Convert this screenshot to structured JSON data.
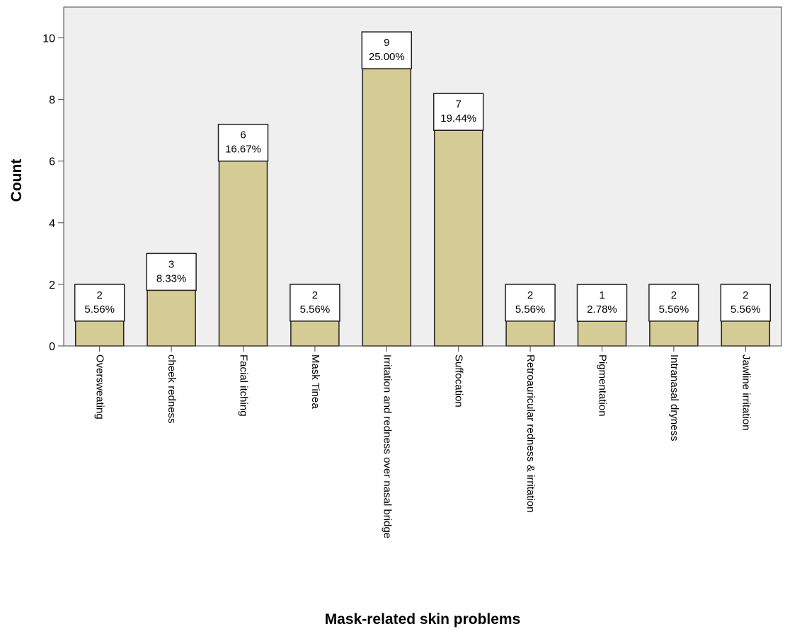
{
  "chart_data": {
    "type": "bar",
    "title": "",
    "xlabel": "Mask-related skin problems",
    "ylabel": "Count",
    "ylim": [
      0,
      11
    ],
    "yticks": [
      0,
      2,
      4,
      6,
      8,
      10
    ],
    "categories": [
      "Oversweating",
      "cheek redness",
      "Facial itching",
      "Mask Tinea",
      "Irritation and redness over nasal bridge",
      "Suffocation",
      "Retroauricular redness & irritation",
      "Pigmentation",
      "Intranasal dryness",
      "Jawline irritation"
    ],
    "values": [
      2,
      3,
      6,
      2,
      9,
      7,
      2,
      1,
      2,
      2
    ],
    "count_labels": [
      "2",
      "3",
      "6",
      "2",
      "9",
      "7",
      "2",
      "1",
      "2",
      "2"
    ],
    "percent_labels": [
      "5.56%",
      "8.33%",
      "16.67%",
      "5.56%",
      "25.00%",
      "19.44%",
      "5.56%",
      "2.78%",
      "5.56%",
      "5.56%"
    ],
    "grid": false,
    "legend": "none",
    "colors": {
      "bar_fill": "#d5cb95",
      "bar_stroke": "#222222",
      "plot_background": "#efefef",
      "label_box_fill": "#ffffff",
      "axis": "#444444",
      "text": "#000000"
    }
  }
}
